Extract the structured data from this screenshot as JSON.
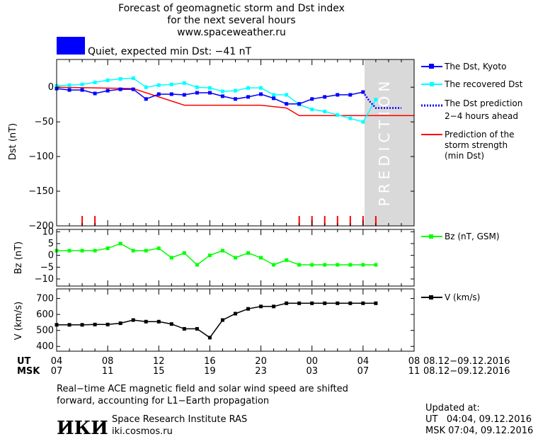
{
  "header": {
    "title_line1": "Forecast of geomagnetic storm and Dst index",
    "title_line2": "for the next several hours",
    "url": "www.spaceweather.ru",
    "status_text": "Quiet, expected min Dst: −41 nT",
    "status_color": "#0000ff"
  },
  "colors": {
    "dst_kyoto": "#0000ff",
    "dst_recovered": "#00ffff",
    "dst_prediction": "#0000ff",
    "storm_strength": "#ff0000",
    "bz": "#00ff00",
    "v": "#000000",
    "prediction_zone": "#d9d9d9",
    "tick_marks": "#ff0000"
  },
  "prediction_watermark": "PREDICTION",
  "legend": {
    "dst_kyoto": "The Dst, Kyoto",
    "dst_recovered": "The recovered Dst",
    "dst_prediction_line1": "The Dst prediction",
    "dst_prediction_line2": "2−4 hours ahead",
    "storm_line1": "Prediction of the",
    "storm_line2": "storm strength",
    "storm_line3": "(min Dst)",
    "bz": "Bz (nT, GSM)",
    "v": "V (km/s)"
  },
  "axes": {
    "dst_ylabel": "Dst (nT)",
    "bz_ylabel": "Bz (nT)",
    "v_ylabel": "V (km/s)",
    "ut_label": "UT",
    "msk_label": "MSK",
    "ut_ticks": [
      "04",
      "08",
      "12",
      "16",
      "20",
      "00",
      "04",
      "08"
    ],
    "msk_ticks": [
      "07",
      "11",
      "15",
      "19",
      "23",
      "03",
      "07",
      "11"
    ],
    "date_range_ut": "08.12−09.12.2016",
    "date_range_msk": "08.12−09.12.2016",
    "dst_yticks": [
      "0",
      "−50",
      "−100",
      "−150",
      "−200"
    ],
    "bz_yticks": [
      "10",
      "5",
      "0",
      "−5",
      "−10"
    ],
    "v_yticks": [
      "700",
      "600",
      "500",
      "400"
    ]
  },
  "footer": {
    "note_line1": "Real−time ACE magnetic field and solar wind speed are shifted",
    "note_line2": "forward, accounting for L1−Earth propagation",
    "logo_text": "ИКИ",
    "institute": "Space Research Institute RAS",
    "site": "iki.cosmos.ru",
    "updated_label": "Updated at:",
    "updated_ut": "UT   04:04, 09.12.2016",
    "updated_msk": "MSK 07:04, 09.12.2016"
  },
  "chart_data": [
    {
      "type": "line",
      "title": "Dst",
      "ylabel": "Dst (nT)",
      "xlim": [
        4,
        32
      ],
      "ylim": [
        -200,
        40
      ],
      "prediction_start": 28,
      "series": [
        {
          "name": "The Dst, Kyoto",
          "x": [
            4,
            5,
            6,
            7,
            8,
            9,
            10,
            11,
            12,
            13,
            14,
            15,
            16,
            17,
            18,
            19,
            20,
            21,
            22,
            23,
            24,
            25,
            26,
            27,
            28
          ],
          "y": [
            -2,
            -4,
            -4,
            -9,
            -5,
            -3,
            -3,
            -17,
            -10,
            -10,
            -11,
            -8,
            -8,
            -13,
            -17,
            -14,
            -10,
            -16,
            -24,
            -24,
            -17,
            -14,
            -11,
            -11,
            -7
          ]
        },
        {
          "name": "The recovered Dst",
          "x": [
            4,
            5,
            6,
            7,
            8,
            9,
            10,
            11,
            12,
            13,
            14,
            15,
            16,
            17,
            18,
            19,
            20,
            21,
            22,
            23,
            24,
            25,
            26,
            27,
            28,
            29
          ],
          "y": [
            2,
            3,
            4,
            7,
            10,
            12,
            13,
            0,
            3,
            4,
            6,
            0,
            -1,
            -6,
            -5,
            -1,
            -1,
            -11,
            -11,
            -25,
            -32,
            -35,
            -40,
            -45,
            -50,
            -18
          ]
        },
        {
          "name": "The Dst prediction 2−4 hours ahead",
          "x": [
            28,
            28.5,
            29,
            30,
            31
          ],
          "y": [
            -7,
            -20,
            -30,
            -30,
            -30
          ]
        },
        {
          "name": "Prediction of the storm strength (min Dst)",
          "x": [
            4,
            10,
            14,
            20,
            22,
            23,
            32
          ],
          "y": [
            0,
            -2,
            -26,
            -26,
            -30,
            -41,
            -41
          ]
        }
      ],
      "storm_marks_x": [
        6,
        7,
        23,
        24,
        25,
        26,
        27,
        28,
        29
      ]
    },
    {
      "type": "line",
      "title": "Bz",
      "ylabel": "Bz (nT)",
      "xlim": [
        4,
        32
      ],
      "ylim": [
        -13,
        11
      ],
      "series": [
        {
          "name": "Bz (nT, GSM)",
          "x": [
            4,
            5,
            6,
            7,
            8,
            9,
            10,
            11,
            12,
            13,
            14,
            15,
            16,
            17,
            18,
            19,
            20,
            21,
            22,
            23,
            24,
            25,
            26,
            27,
            28,
            29
          ],
          "y": [
            2,
            2,
            2,
            2,
            3,
            5,
            2,
            2,
            3,
            -1,
            1,
            -4,
            0,
            2,
            -1,
            1,
            -1,
            -4,
            -2,
            -4,
            -4,
            -4,
            -4,
            -4,
            -4,
            -4
          ]
        }
      ]
    },
    {
      "type": "line",
      "title": "V",
      "ylabel": "V (km/s)",
      "xlim": [
        4,
        32
      ],
      "ylim": [
        370,
        760
      ],
      "series": [
        {
          "name": "V (km/s)",
          "x": [
            4,
            5,
            6,
            7,
            8,
            9,
            10,
            11,
            12,
            13,
            14,
            15,
            16,
            17,
            18,
            19,
            20,
            21,
            22,
            23,
            24,
            25,
            26,
            27,
            28,
            29
          ],
          "y": [
            535,
            535,
            535,
            537,
            537,
            545,
            565,
            555,
            555,
            540,
            510,
            510,
            455,
            565,
            605,
            635,
            650,
            650,
            670,
            670,
            670,
            670,
            670,
            670,
            670,
            670
          ]
        }
      ]
    }
  ]
}
